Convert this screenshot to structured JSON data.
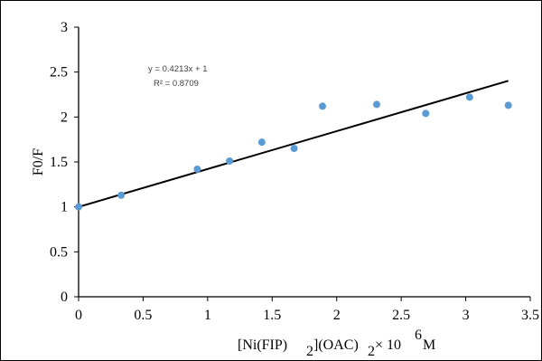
{
  "chart_data": {
    "type": "scatter",
    "ylabel": "F0/F",
    "xlabel": {
      "parts": [
        "[Ni(FIP)",
        "2",
        "](OAC)",
        "2",
        " × 10",
        "6",
        " M"
      ]
    },
    "xlim": [
      0,
      3.5
    ],
    "ylim": [
      0,
      3
    ],
    "x_ticks": [
      "0",
      "0.5",
      "1",
      "1.5",
      "2",
      "2.5",
      "3",
      "3.5"
    ],
    "y_ticks": [
      "0",
      "0.5",
      "1",
      "1.5",
      "2",
      "2.5",
      "3"
    ],
    "grid": false,
    "series": [
      {
        "marker_color": "#5b9bd5",
        "points": [
          {
            "x": 0.0,
            "y": 1.0
          },
          {
            "x": 0.33,
            "y": 1.13
          },
          {
            "x": 0.92,
            "y": 1.42
          },
          {
            "x": 1.17,
            "y": 1.51
          },
          {
            "x": 1.42,
            "y": 1.72
          },
          {
            "x": 1.67,
            "y": 1.65
          },
          {
            "x": 1.89,
            "y": 2.12
          },
          {
            "x": 2.31,
            "y": 2.14
          },
          {
            "x": 2.69,
            "y": 2.04
          },
          {
            "x": 3.03,
            "y": 2.22
          },
          {
            "x": 3.33,
            "y": 2.13
          }
        ]
      }
    ],
    "trendline": {
      "slope": 0.4213,
      "intercept": 1,
      "x_range": [
        0,
        3.33
      ],
      "color": "#000000",
      "equation_label": "y = 0.4213x + 1",
      "r2_label": "R² = 0.8709"
    }
  }
}
